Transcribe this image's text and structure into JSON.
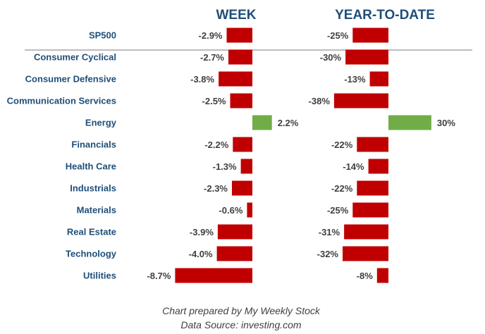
{
  "chart_data": {
    "type": "bar",
    "orientation": "horizontal",
    "categories": [
      "SP500",
      "Consumer Cyclical",
      "Consumer Defensive",
      "Communication Services",
      "Energy",
      "Financials",
      "Health Care",
      "Industrials",
      "Materials",
      "Real Estate",
      "Technology",
      "Utilities"
    ],
    "series": [
      {
        "name": "WEEK",
        "values": [
          -2.9,
          -2.7,
          -3.8,
          -2.5,
          2.2,
          -2.2,
          -1.3,
          -2.3,
          -0.6,
          -3.9,
          -4.0,
          -8.7
        ],
        "labels": [
          "-2.9%",
          "-2.7%",
          "-3.8%",
          "-2.5%",
          "2.2%",
          "-2.2%",
          "-1.3%",
          "-2.3%",
          "-0.6%",
          "-3.9%",
          "-4.0%",
          "-8.7%"
        ]
      },
      {
        "name": "YEAR-TO-DATE",
        "values": [
          -25,
          -30,
          -13,
          -38,
          30,
          -22,
          -14,
          -22,
          -25,
          -31,
          -32,
          -8
        ],
        "labels": [
          "-25%",
          "-30%",
          "-13%",
          "-38%",
          "30%",
          "-22%",
          "-14%",
          "-22%",
          "-25%",
          "-31%",
          "-32%",
          "-8%"
        ]
      }
    ],
    "colors": {
      "negative": "#c00000",
      "positive": "#70ad47",
      "category_text": "#1f4e79",
      "header_text": "#1f4e79",
      "value_text": "#404040",
      "separator": "#a6a6a6"
    },
    "separator_after": "SP500",
    "footer": [
      "Chart prepared by My Weekly Stock",
      "Data Source: investing.com"
    ],
    "grid": false,
    "legend": "none"
  }
}
